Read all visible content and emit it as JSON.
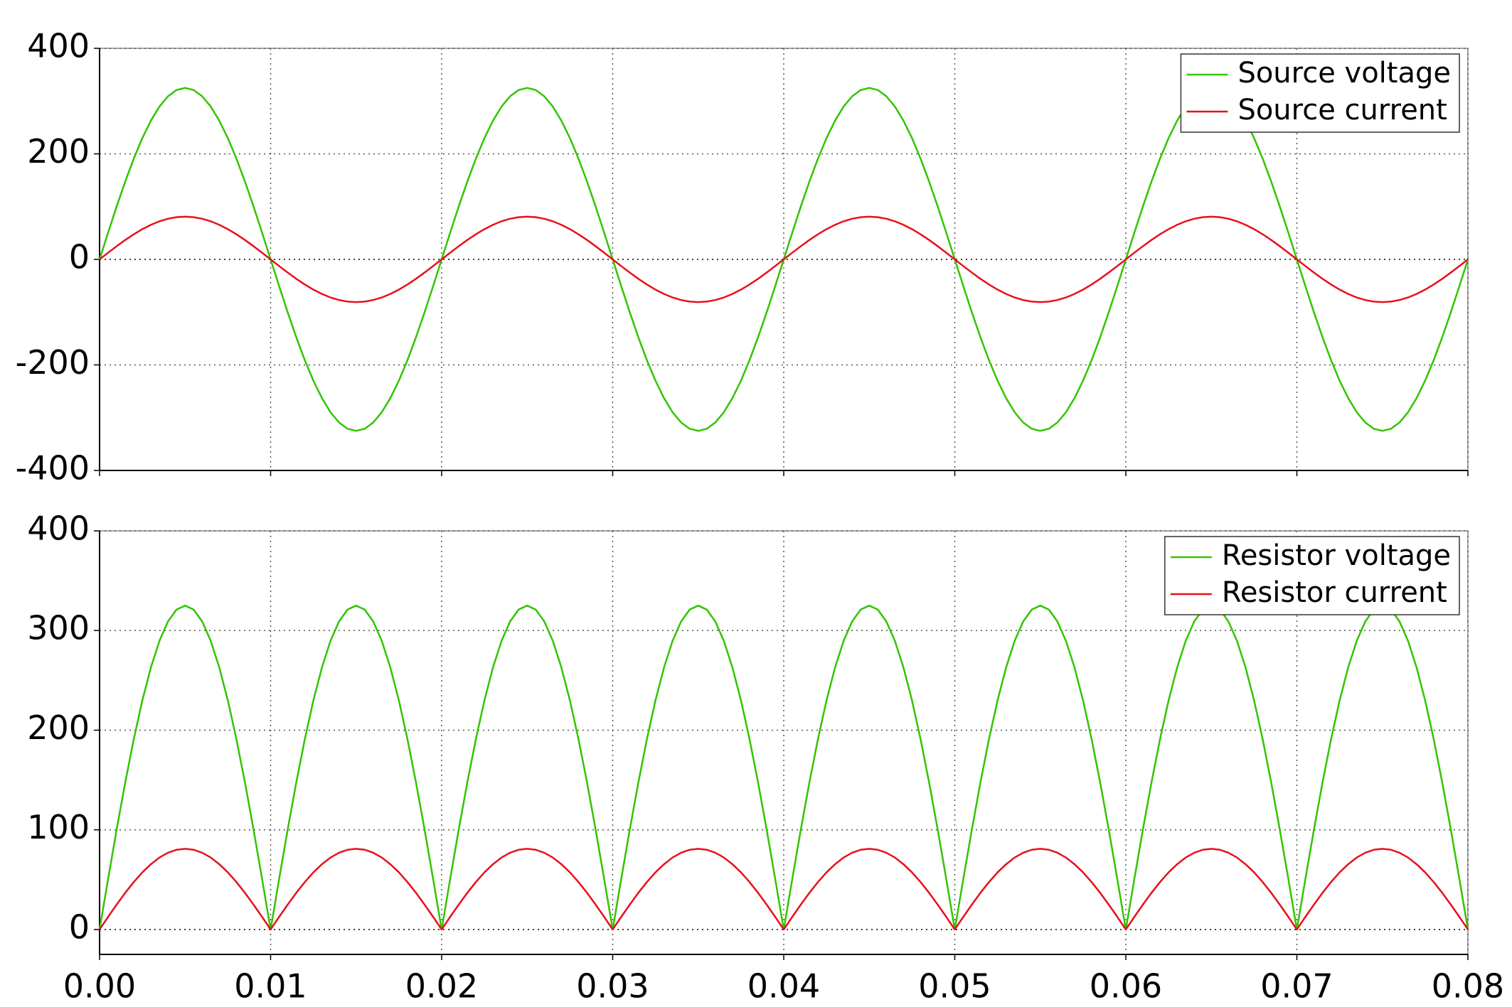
{
  "chart_data": [
    {
      "type": "line",
      "legend": "upper right",
      "grid": true,
      "x": [
        0,
        0.0005,
        0.001,
        0.0015,
        0.002,
        0.0025,
        0.003,
        0.0035,
        0.004,
        0.0045,
        0.005,
        0.0055,
        0.006,
        0.0065,
        0.007,
        0.0075,
        0.008,
        0.0085,
        0.009,
        0.0095,
        0.01,
        0.0105,
        0.011,
        0.0115,
        0.012,
        0.0125,
        0.013,
        0.0135,
        0.014,
        0.0145,
        0.015,
        0.0155,
        0.016,
        0.0165,
        0.017,
        0.0175,
        0.018,
        0.0185,
        0.019,
        0.0195,
        0.02,
        0.0205,
        0.021,
        0.0215,
        0.022,
        0.0225,
        0.023,
        0.0235,
        0.024,
        0.0245,
        0.025,
        0.0255,
        0.026,
        0.0265,
        0.027,
        0.0275,
        0.028,
        0.0285,
        0.029,
        0.0295,
        0.03,
        0.0305,
        0.031,
        0.0315,
        0.032,
        0.0325,
        0.033,
        0.0335,
        0.034,
        0.0345,
        0.035,
        0.0355,
        0.036,
        0.0365,
        0.037,
        0.0375,
        0.038,
        0.0385,
        0.039,
        0.0395,
        0.04,
        0.0405,
        0.041,
        0.0415,
        0.042,
        0.0425,
        0.043,
        0.0435,
        0.044,
        0.0445,
        0.045,
        0.0455,
        0.046,
        0.0465,
        0.047,
        0.0475,
        0.048,
        0.0485,
        0.049,
        0.0495,
        0.05,
        0.0505,
        0.051,
        0.0515,
        0.052,
        0.0525,
        0.053,
        0.0535,
        0.054,
        0.0545,
        0.055,
        0.0555,
        0.056,
        0.0565,
        0.057,
        0.0575,
        0.058,
        0.0585,
        0.059,
        0.0595,
        0.06,
        0.0605,
        0.061,
        0.0615,
        0.062,
        0.0625,
        0.063,
        0.0635,
        0.064,
        0.0645,
        0.065,
        0.0655,
        0.066,
        0.0665,
        0.067,
        0.0675,
        0.068,
        0.0685,
        0.069,
        0.0695,
        0.07,
        0.0705,
        0.071,
        0.0715,
        0.072,
        0.0725,
        0.073,
        0.0735,
        0.074,
        0.0745,
        0.075,
        0.0755,
        0.076,
        0.0765,
        0.077,
        0.0775,
        0.078,
        0.0785,
        0.079,
        0.0795,
        0.08
      ],
      "xlim": [
        0,
        0.08
      ],
      "xticks": [
        0,
        0.01,
        0.02,
        0.03,
        0.04,
        0.05,
        0.06,
        0.07,
        0.08
      ],
      "ylim": [
        -400,
        400
      ],
      "yticks": [
        400,
        200,
        0,
        -200,
        -400
      ],
      "series": [
        {
          "name": "Source voltage",
          "color": "#33c400",
          "values": [
            0,
            50.8,
            100.4,
            147.5,
            191,
            229.8,
            262.9,
            289.6,
            309.1,
            321,
            325,
            321,
            309.1,
            289.6,
            262.9,
            229.8,
            191,
            147.5,
            100.4,
            50.8,
            0,
            -50.8,
            -100.4,
            -147.5,
            -191,
            -229.8,
            -262.9,
            -289.6,
            -309.1,
            -321,
            -325,
            -321,
            -309.1,
            -289.6,
            -262.9,
            -229.8,
            -191,
            -147.5,
            -100.4,
            -50.8,
            0,
            50.8,
            100.4,
            147.5,
            191,
            229.8,
            262.9,
            289.6,
            309.1,
            321,
            325,
            321,
            309.1,
            289.6,
            262.9,
            229.8,
            191,
            147.5,
            100.4,
            50.8,
            0,
            -50.8,
            -100.4,
            -147.5,
            -191,
            -229.8,
            -262.9,
            -289.6,
            -309.1,
            -321,
            -325,
            -321,
            -309.1,
            -289.6,
            -262.9,
            -229.8,
            -191,
            -147.5,
            -100.4,
            -50.8,
            0,
            50.8,
            100.4,
            147.5,
            191,
            229.8,
            262.9,
            289.6,
            309.1,
            321,
            325,
            321,
            309.1,
            289.6,
            262.9,
            229.8,
            191,
            147.5,
            100.4,
            50.8,
            0,
            -50.8,
            -100.4,
            -147.5,
            -191,
            -229.8,
            -262.9,
            -289.6,
            -309.1,
            -321,
            -325,
            -321,
            -309.1,
            -289.6,
            -262.9,
            -229.8,
            -191,
            -147.5,
            -100.4,
            -50.8,
            0,
            50.8,
            100.4,
            147.5,
            191,
            229.8,
            262.9,
            289.6,
            309.1,
            321,
            325,
            321,
            309.1,
            289.6,
            262.9,
            229.8,
            191,
            147.5,
            100.4,
            50.8,
            0,
            -50.8,
            -100.4,
            -147.5,
            -191,
            -229.8,
            -262.9,
            -289.6,
            -309.1,
            -321,
            -325,
            -321,
            -309.1,
            -289.6,
            -262.9,
            -229.8,
            -191,
            -147.5,
            -100.4,
            -50.8,
            0
          ]
        },
        {
          "name": "Source current",
          "color": "#e8101a",
          "values": [
            0,
            12.7,
            25,
            36.8,
            47.6,
            57.3,
            65.5,
            72.2,
            77,
            80,
            81,
            80,
            77,
            72.2,
            65.5,
            57.3,
            47.6,
            36.8,
            25,
            12.7,
            0,
            -12.7,
            -25,
            -36.8,
            -47.6,
            -57.3,
            -65.5,
            -72.2,
            -77,
            -80,
            -81,
            -80,
            -77,
            -72.2,
            -65.5,
            -57.3,
            -47.6,
            -36.8,
            -25,
            -12.7,
            0,
            12.7,
            25,
            36.8,
            47.6,
            57.3,
            65.5,
            72.2,
            77,
            80,
            81,
            80,
            77,
            72.2,
            65.5,
            57.3,
            47.6,
            36.8,
            25,
            12.7,
            0,
            -12.7,
            -25,
            -36.8,
            -47.6,
            -57.3,
            -65.5,
            -72.2,
            -77,
            -80,
            -81,
            -80,
            -77,
            -72.2,
            -65.5,
            -57.3,
            -47.6,
            -36.8,
            -25,
            -12.7,
            0,
            12.7,
            25,
            36.8,
            47.6,
            57.3,
            65.5,
            72.2,
            77,
            80,
            81,
            80,
            77,
            72.2,
            65.5,
            57.3,
            47.6,
            36.8,
            25,
            12.7,
            0,
            -12.7,
            -25,
            -36.8,
            -47.6,
            -57.3,
            -65.5,
            -72.2,
            -77,
            -80,
            -81,
            -80,
            -77,
            -72.2,
            -65.5,
            -57.3,
            -47.6,
            -36.8,
            -25,
            -12.7,
            0,
            12.7,
            25,
            36.8,
            47.6,
            57.3,
            65.5,
            72.2,
            77,
            80,
            81,
            80,
            77,
            72.2,
            65.5,
            57.3,
            47.6,
            36.8,
            25,
            12.7,
            0,
            -12.7,
            -25,
            -36.8,
            -47.6,
            -57.3,
            -65.5,
            -72.2,
            -77,
            -80,
            -81,
            -80,
            -77,
            -72.2,
            -65.5,
            -57.3,
            -47.6,
            -36.8,
            -25,
            -12.7,
            0
          ]
        }
      ]
    },
    {
      "type": "line",
      "legend": "upper right",
      "grid": true,
      "x": [
        0,
        0.0005,
        0.001,
        0.0015,
        0.002,
        0.0025,
        0.003,
        0.0035,
        0.004,
        0.0045,
        0.005,
        0.0055,
        0.006,
        0.0065,
        0.007,
        0.0075,
        0.008,
        0.0085,
        0.009,
        0.0095,
        0.01,
        0.0105,
        0.011,
        0.0115,
        0.012,
        0.0125,
        0.013,
        0.0135,
        0.014,
        0.0145,
        0.015,
        0.0155,
        0.016,
        0.0165,
        0.017,
        0.0175,
        0.018,
        0.0185,
        0.019,
        0.0195,
        0.02,
        0.0205,
        0.021,
        0.0215,
        0.022,
        0.0225,
        0.023,
        0.0235,
        0.024,
        0.0245,
        0.025,
        0.0255,
        0.026,
        0.0265,
        0.027,
        0.0275,
        0.028,
        0.0285,
        0.029,
        0.0295,
        0.03,
        0.0305,
        0.031,
        0.0315,
        0.032,
        0.0325,
        0.033,
        0.0335,
        0.034,
        0.0345,
        0.035,
        0.0355,
        0.036,
        0.0365,
        0.037,
        0.0375,
        0.038,
        0.0385,
        0.039,
        0.0395,
        0.04,
        0.0405,
        0.041,
        0.0415,
        0.042,
        0.0425,
        0.043,
        0.0435,
        0.044,
        0.0445,
        0.045,
        0.0455,
        0.046,
        0.0465,
        0.047,
        0.0475,
        0.048,
        0.0485,
        0.049,
        0.0495,
        0.05,
        0.0505,
        0.051,
        0.0515,
        0.052,
        0.0525,
        0.053,
        0.0535,
        0.054,
        0.0545,
        0.055,
        0.0555,
        0.056,
        0.0565,
        0.057,
        0.0575,
        0.058,
        0.0585,
        0.059,
        0.0595,
        0.06,
        0.0605,
        0.061,
        0.0615,
        0.062,
        0.0625,
        0.063,
        0.0635,
        0.064,
        0.0645,
        0.065,
        0.0655,
        0.066,
        0.0665,
        0.067,
        0.0675,
        0.068,
        0.0685,
        0.069,
        0.0695,
        0.07,
        0.0705,
        0.071,
        0.0715,
        0.072,
        0.0725,
        0.073,
        0.0735,
        0.074,
        0.0745,
        0.075,
        0.0755,
        0.076,
        0.0765,
        0.077,
        0.0775,
        0.078,
        0.0785,
        0.079,
        0.0795,
        0.08
      ],
      "xlim": [
        0,
        0.08
      ],
      "xticks": [
        {
          "value": 0,
          "label": "0.00"
        },
        {
          "value": 0.01,
          "label": "0.01"
        },
        {
          "value": 0.02,
          "label": "0.02"
        },
        {
          "value": 0.03,
          "label": "0.03"
        },
        {
          "value": 0.04,
          "label": "0.04"
        },
        {
          "value": 0.05,
          "label": "0.05"
        },
        {
          "value": 0.06,
          "label": "0.06"
        },
        {
          "value": 0.07,
          "label": "0.07"
        },
        {
          "value": 0.08,
          "label": "0.08"
        }
      ],
      "ylim": [
        -25,
        400
      ],
      "yticks": [
        400,
        300,
        200,
        100,
        0
      ],
      "series": [
        {
          "name": "Resistor voltage",
          "color": "#33c400",
          "values": [
            0,
            50.8,
            100.4,
            147.5,
            191,
            229.8,
            262.9,
            289.6,
            309.1,
            321,
            325,
            321,
            309.1,
            289.6,
            262.9,
            229.8,
            191,
            147.5,
            100.4,
            50.8,
            0,
            50.8,
            100.4,
            147.5,
            191,
            229.8,
            262.9,
            289.6,
            309.1,
            321,
            325,
            321,
            309.1,
            289.6,
            262.9,
            229.8,
            191,
            147.5,
            100.4,
            50.8,
            0,
            50.8,
            100.4,
            147.5,
            191,
            229.8,
            262.9,
            289.6,
            309.1,
            321,
            325,
            321,
            309.1,
            289.6,
            262.9,
            229.8,
            191,
            147.5,
            100.4,
            50.8,
            0,
            50.8,
            100.4,
            147.5,
            191,
            229.8,
            262.9,
            289.6,
            309.1,
            321,
            325,
            321,
            309.1,
            289.6,
            262.9,
            229.8,
            191,
            147.5,
            100.4,
            50.8,
            0,
            50.8,
            100.4,
            147.5,
            191,
            229.8,
            262.9,
            289.6,
            309.1,
            321,
            325,
            321,
            309.1,
            289.6,
            262.9,
            229.8,
            191,
            147.5,
            100.4,
            50.8,
            0,
            50.8,
            100.4,
            147.5,
            191,
            229.8,
            262.9,
            289.6,
            309.1,
            321,
            325,
            321,
            309.1,
            289.6,
            262.9,
            229.8,
            191,
            147.5,
            100.4,
            50.8,
            0,
            50.8,
            100.4,
            147.5,
            191,
            229.8,
            262.9,
            289.6,
            309.1,
            321,
            325,
            321,
            309.1,
            289.6,
            262.9,
            229.8,
            191,
            147.5,
            100.4,
            50.8,
            0,
            50.8,
            100.4,
            147.5,
            191,
            229.8,
            262.9,
            289.6,
            309.1,
            321,
            325,
            321,
            309.1,
            289.6,
            262.9,
            229.8,
            191,
            147.5,
            100.4,
            50.8,
            0
          ]
        },
        {
          "name": "Resistor current",
          "color": "#e8101a",
          "values": [
            0,
            12.7,
            25,
            36.8,
            47.6,
            57.3,
            65.5,
            72.2,
            77,
            80,
            81,
            80,
            77,
            72.2,
            65.5,
            57.3,
            47.6,
            36.8,
            25,
            12.7,
            0,
            12.7,
            25,
            36.8,
            47.6,
            57.3,
            65.5,
            72.2,
            77,
            80,
            81,
            80,
            77,
            72.2,
            65.5,
            57.3,
            47.6,
            36.8,
            25,
            12.7,
            0,
            12.7,
            25,
            36.8,
            47.6,
            57.3,
            65.5,
            72.2,
            77,
            80,
            81,
            80,
            77,
            72.2,
            65.5,
            57.3,
            47.6,
            36.8,
            25,
            12.7,
            0,
            12.7,
            25,
            36.8,
            47.6,
            57.3,
            65.5,
            72.2,
            77,
            80,
            81,
            80,
            77,
            72.2,
            65.5,
            57.3,
            47.6,
            36.8,
            25,
            12.7,
            0,
            12.7,
            25,
            36.8,
            47.6,
            57.3,
            65.5,
            72.2,
            77,
            80,
            81,
            80,
            77,
            72.2,
            65.5,
            57.3,
            47.6,
            36.8,
            25,
            12.7,
            0,
            12.7,
            25,
            36.8,
            47.6,
            57.3,
            65.5,
            72.2,
            77,
            80,
            81,
            80,
            77,
            72.2,
            65.5,
            57.3,
            47.6,
            36.8,
            25,
            12.7,
            0,
            12.7,
            25,
            36.8,
            47.6,
            57.3,
            65.5,
            72.2,
            77,
            80,
            81,
            80,
            77,
            72.2,
            65.5,
            57.3,
            47.6,
            36.8,
            25,
            12.7,
            0,
            12.7,
            25,
            36.8,
            47.6,
            57.3,
            65.5,
            72.2,
            77,
            80,
            81,
            80,
            77,
            72.2,
            65.5,
            57.3,
            47.6,
            36.8,
            25,
            12.7,
            0
          ]
        }
      ]
    }
  ]
}
